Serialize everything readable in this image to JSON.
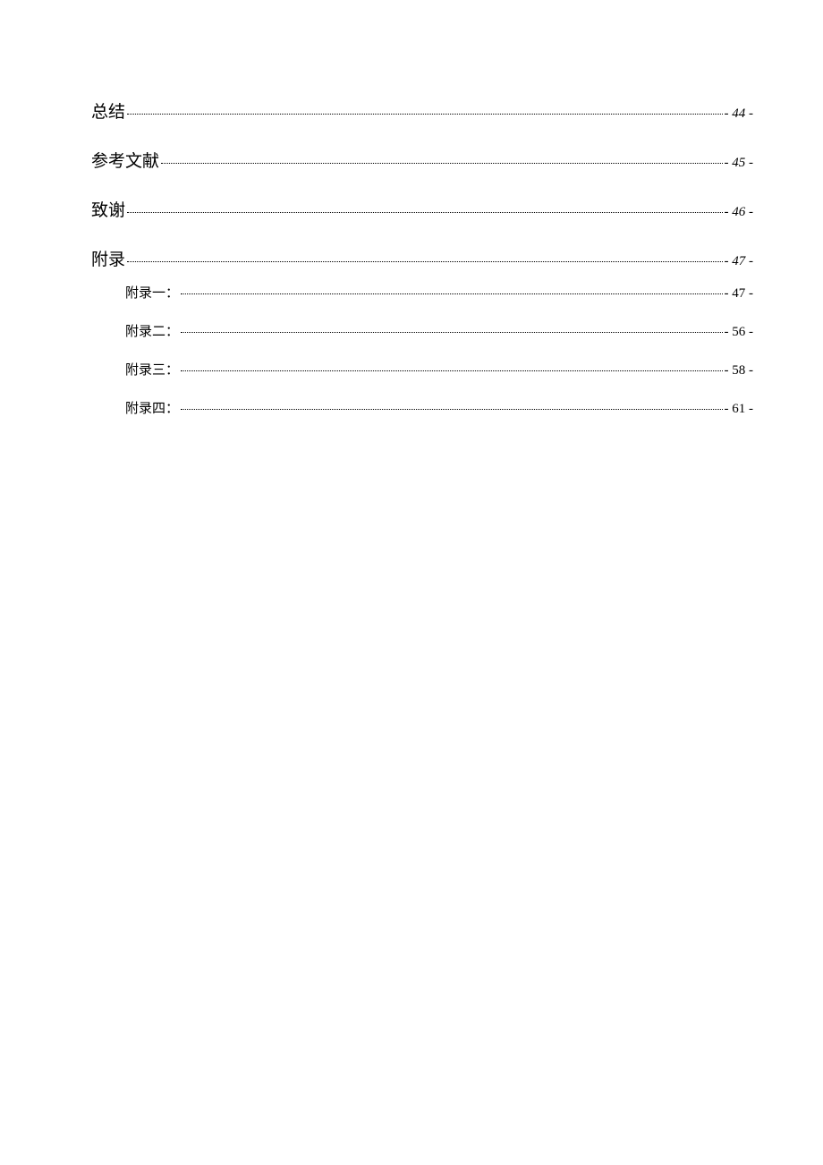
{
  "toc": {
    "level1_font_size_pt": 14,
    "level2_font_size_pt": 11,
    "leader_color": "#000000",
    "text_color": "#000000",
    "background_color": "#ffffff",
    "entries": [
      {
        "level": 1,
        "title": "总结",
        "page": "- 44 -"
      },
      {
        "level": 1,
        "title": "参考文献",
        "page": "- 45 -"
      },
      {
        "level": 1,
        "title": "致谢",
        "page": "- 46 -"
      },
      {
        "level": 1,
        "title": "附录",
        "page": "- 47 -"
      },
      {
        "level": 2,
        "title": "附录一：",
        "page": "- 47 -"
      },
      {
        "level": 2,
        "title": "附录二：",
        "page": "- 56 -"
      },
      {
        "level": 2,
        "title": "附录三：",
        "page": "- 58 -"
      },
      {
        "level": 2,
        "title": "附录四：",
        "page": "- 61 -"
      }
    ]
  }
}
